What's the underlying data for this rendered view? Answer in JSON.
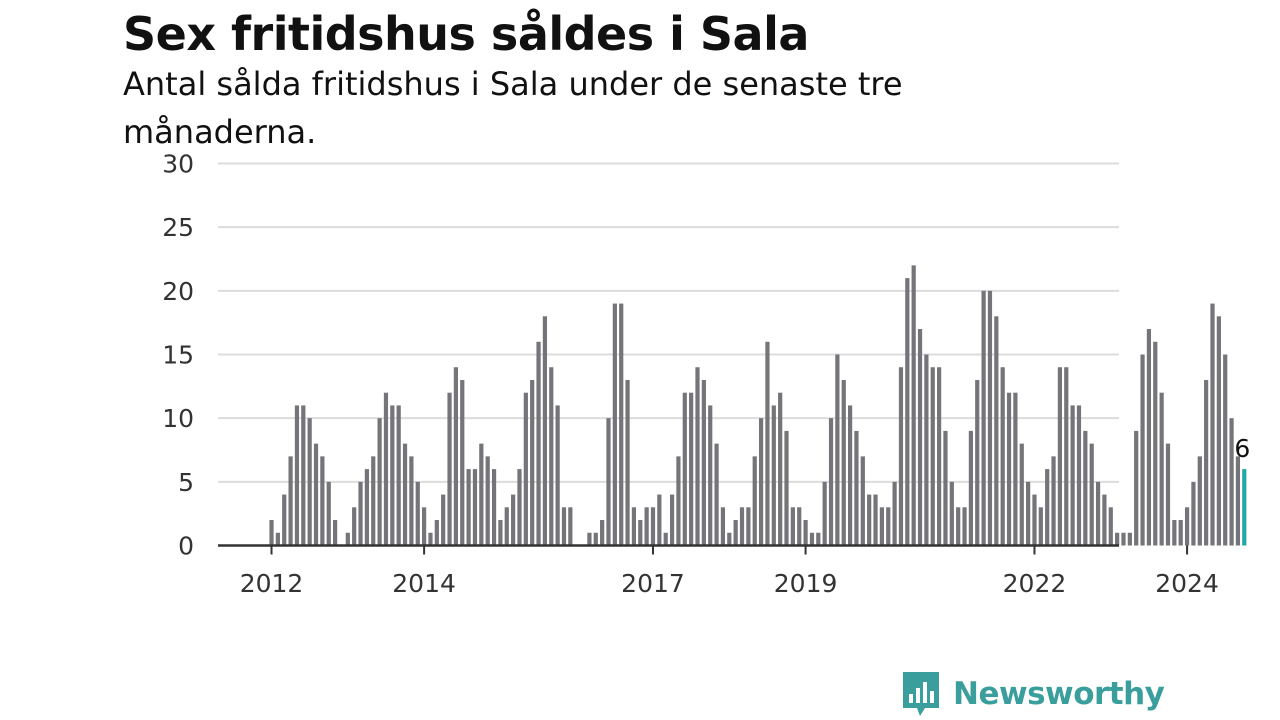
{
  "title": "Sex fritidshus såldes i Sala",
  "subtitle": "Antal sålda fritidshus i Sala under de senaste tre månaderna.",
  "brand": {
    "name": "Newsworthy",
    "icon": "bar-chart-speech-bubble-icon",
    "color": "#3a9e9c"
  },
  "colors": {
    "bar": "#747479",
    "highlight": "#23a9a3",
    "grid": "#dcdcdc",
    "axis": "#333333"
  },
  "chart_data": {
    "type": "bar",
    "title": "Sex fritidshus såldes i Sala",
    "subtitle": "Antal sålda fritidshus i Sala under de senaste tre månaderna.",
    "xlabel": "",
    "ylabel": "",
    "ylim": [
      0,
      30
    ],
    "yticks": [
      0,
      5,
      10,
      15,
      20,
      25,
      30
    ],
    "grid": true,
    "x_start": "2011-11",
    "x_end": "2024-10",
    "x_unit": "month",
    "xtick_labels": [
      {
        "label": "2012",
        "month": "2012-01"
      },
      {
        "label": "2014",
        "month": "2014-01"
      },
      {
        "label": "2017",
        "month": "2017-01"
      },
      {
        "label": "2019",
        "month": "2019-01"
      },
      {
        "label": "2022",
        "month": "2022-01"
      },
      {
        "label": "2024",
        "month": "2024-01"
      }
    ],
    "values": [
      0,
      0,
      2,
      1,
      4,
      7,
      11,
      11,
      10,
      8,
      7,
      5,
      2,
      0,
      1,
      3,
      5,
      6,
      7,
      10,
      12,
      11,
      11,
      8,
      7,
      5,
      3,
      1,
      2,
      4,
      12,
      14,
      13,
      6,
      6,
      8,
      7,
      6,
      2,
      3,
      4,
      6,
      12,
      13,
      16,
      18,
      14,
      11,
      3,
      3,
      0,
      0,
      1,
      1,
      2,
      10,
      19,
      19,
      13,
      3,
      2,
      3,
      3,
      4,
      1,
      4,
      7,
      12,
      12,
      14,
      13,
      11,
      8,
      3,
      1,
      2,
      3,
      3,
      7,
      10,
      16,
      11,
      12,
      9,
      3,
      3,
      2,
      1,
      1,
      5,
      10,
      15,
      13,
      11,
      9,
      7,
      4,
      4,
      3,
      3,
      5,
      14,
      21,
      22,
      17,
      15,
      14,
      14,
      9,
      5,
      3,
      3,
      9,
      13,
      20,
      20,
      18,
      14,
      12,
      12,
      8,
      5,
      4,
      3,
      6,
      7,
      14,
      14,
      11,
      11,
      9,
      8,
      5,
      4,
      3,
      1,
      1,
      1,
      9,
      15,
      17,
      16,
      12,
      8,
      2,
      2,
      3,
      5,
      7,
      13,
      19,
      18,
      15,
      10,
      7,
      6
    ],
    "highlight": {
      "month": "2024-10",
      "value": 6,
      "label": "6"
    }
  }
}
